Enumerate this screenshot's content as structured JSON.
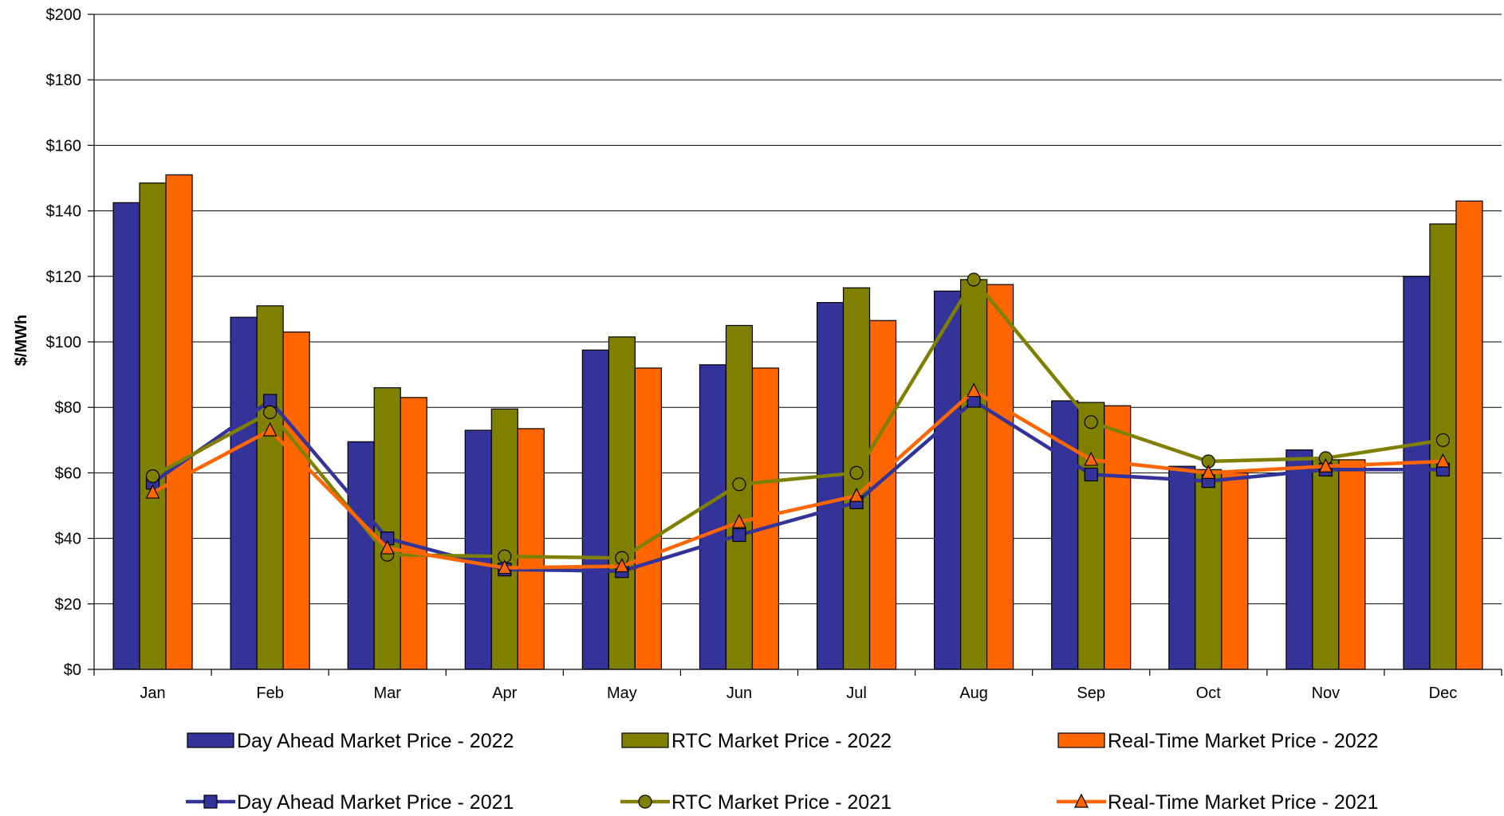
{
  "chart_data": {
    "type": "bar",
    "title": "",
    "xlabel": "",
    "ylabel": "$/MWh",
    "ylim": [
      0,
      200
    ],
    "yticks": [
      0,
      20,
      40,
      60,
      80,
      100,
      120,
      140,
      160,
      180,
      200
    ],
    "ytick_labels": [
      "$0",
      "$20",
      "$40",
      "$60",
      "$80",
      "$100",
      "$120",
      "$140",
      "$160",
      "$180",
      "$200"
    ],
    "grid": "horizontal",
    "legend_position": "bottom",
    "categories": [
      "Jan",
      "Feb",
      "Mar",
      "Apr",
      "May",
      "Jun",
      "Jul",
      "Aug",
      "Sep",
      "Oct",
      "Nov",
      "Dec"
    ],
    "series": [
      {
        "name": "Day Ahead Market Price - 2022",
        "kind": "bar",
        "color": "#333399",
        "values": [
          142.5,
          107.5,
          69.5,
          73,
          97.5,
          93,
          112,
          115.5,
          82,
          62,
          67,
          120
        ]
      },
      {
        "name": "RTC Market Price - 2022",
        "kind": "bar",
        "color": "#808000",
        "values": [
          148.5,
          111,
          86,
          79.5,
          101.5,
          105,
          116.5,
          119,
          81.5,
          61,
          64,
          136
        ]
      },
      {
        "name": "Real-Time Market Price - 2022",
        "kind": "bar",
        "color": "#ff6600",
        "values": [
          151,
          103,
          83,
          73.5,
          92,
          92,
          106.5,
          117.5,
          80.5,
          60,
          64,
          143
        ]
      },
      {
        "name": "Day Ahead Market Price - 2021",
        "kind": "line",
        "marker": "square",
        "color": "#333399",
        "values": [
          57,
          82,
          40,
          30.5,
          30,
          41,
          51,
          82,
          59.5,
          57.5,
          61,
          61
        ]
      },
      {
        "name": "RTC Market Price - 2021",
        "kind": "line",
        "marker": "circle",
        "color": "#808000",
        "values": [
          59,
          78.5,
          35,
          34.5,
          34,
          56.5,
          60,
          119,
          75.5,
          63.5,
          64.5,
          70
        ]
      },
      {
        "name": "Real-Time Market Price - 2021",
        "kind": "line",
        "marker": "triangle",
        "color": "#ff6600",
        "values": [
          54,
          73,
          37,
          31,
          31.5,
          45,
          53,
          85,
          64,
          60,
          62,
          63.5
        ]
      }
    ]
  }
}
